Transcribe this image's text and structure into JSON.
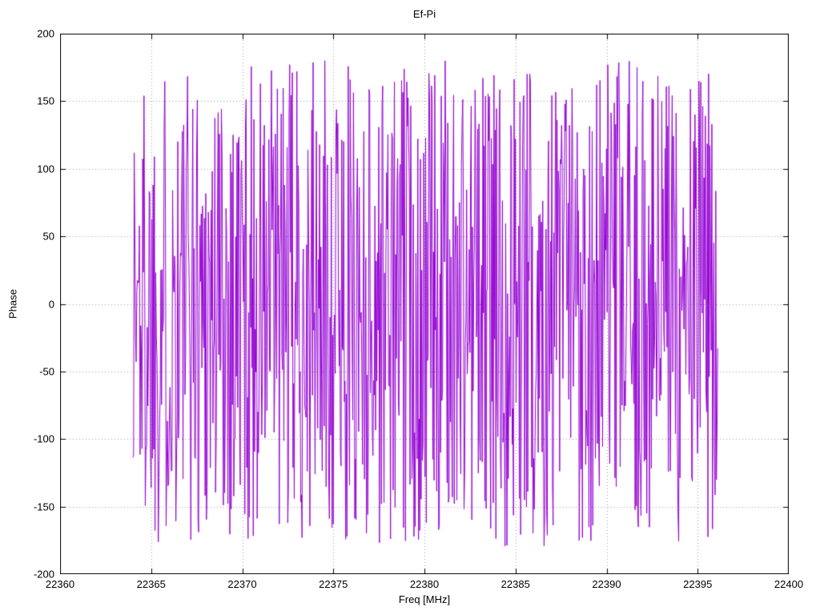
{
  "chart_data": {
    "type": "line",
    "title": "Ef-Pi",
    "xlabel": "Freq [MHz]",
    "ylabel": "Phase",
    "xlim": [
      22360,
      22400
    ],
    "ylim": [
      -200,
      200
    ],
    "x_ticks": [
      22360,
      22365,
      22370,
      22375,
      22380,
      22385,
      22390,
      22395,
      22400
    ],
    "y_ticks": [
      -200,
      -150,
      -100,
      -50,
      0,
      50,
      100,
      150,
      200
    ],
    "grid": true,
    "grid_color": "#9a9a9a",
    "border_color": "#000000",
    "legend": "none",
    "series": [
      {
        "name": "Ef-Pi",
        "color": "#9400d3",
        "style": "wrapped-phase-noise",
        "x_start": 22364.0,
        "x_end": 22396.1,
        "points": 900,
        "y_min": -180,
        "y_max": 180,
        "seed": 1337
      }
    ]
  }
}
